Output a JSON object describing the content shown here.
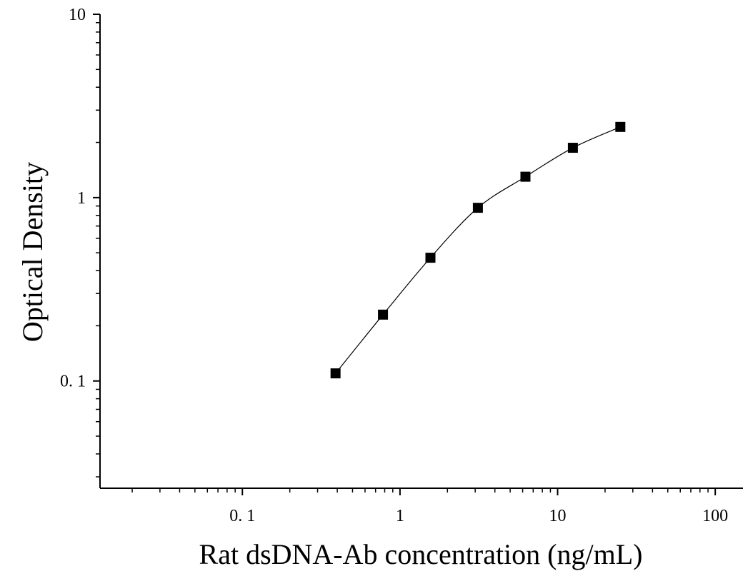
{
  "chart_data": {
    "type": "scatter",
    "title": "",
    "xlabel": "Rat dsDNA-Ab concentration (ng/mL)",
    "ylabel": "Optical Density",
    "x_scale": "log",
    "y_scale": "log",
    "xlim": [
      0.0125,
      150
    ],
    "ylim": [
      0.026,
      10
    ],
    "x_ticks": [
      {
        "value": 0.1,
        "label": "0. 1"
      },
      {
        "value": 1,
        "label": "1"
      },
      {
        "value": 10,
        "label": "10"
      },
      {
        "value": 100,
        "label": "100"
      }
    ],
    "y_ticks": [
      {
        "value": 0.1,
        "label": "0. 1"
      },
      {
        "value": 1,
        "label": "1"
      },
      {
        "value": 10,
        "label": "10"
      }
    ],
    "grid": false,
    "legend": "none",
    "series": [
      {
        "marker": "square",
        "line": "smooth",
        "color": "#000000",
        "x": [
          0.39,
          0.78,
          1.56,
          3.12,
          6.25,
          12.5,
          25
        ],
        "y": [
          0.11,
          0.23,
          0.47,
          0.88,
          1.3,
          1.87,
          2.43
        ]
      }
    ]
  }
}
